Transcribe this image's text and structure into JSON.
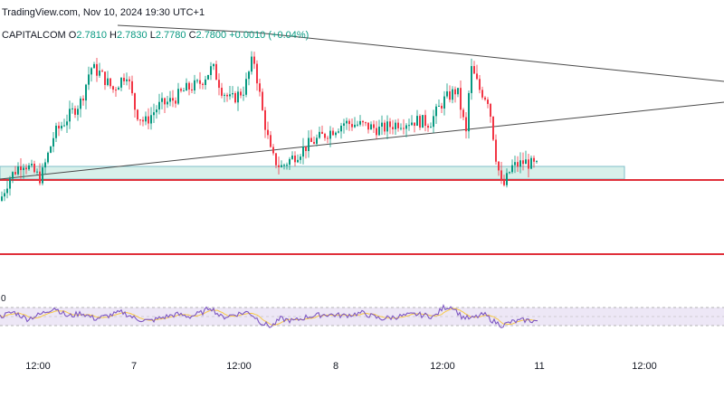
{
  "header": {
    "watermark": "TradingView.com, Nov 10, 2024 19:30 UTC+1",
    "symbol": "CAPITALCOM",
    "o_label": "O",
    "o_value": "2.7810",
    "h_label": "H",
    "h_value": "2.7830",
    "l_label": "L",
    "l_value": "2.7780",
    "c_label": "C",
    "c_value": "2.7800",
    "change": "+0.0010 (+0.04%)"
  },
  "rsi": {
    "tag": "0"
  },
  "colors": {
    "up": "#089981",
    "down": "#f23645",
    "trend": "#4a4a4a",
    "support_zone": "#d8f0ea",
    "support_border": "#7fbfc9",
    "level": "#e0303a",
    "rsi_line": "#7e57c2",
    "rsi_ma": "#f7c948",
    "rsi_band": "#ede7f6"
  },
  "chart_data": {
    "type": "candlestick",
    "x_ticks": [
      "12:00",
      "7",
      "12:00",
      "8",
      "12:00",
      "11",
      "12:00"
    ],
    "ylim": [
      2.5,
      2.84
    ],
    "support_zone": [
      2.7,
      2.715
    ],
    "horizontal_levels": [
      2.699,
      2.625
    ],
    "candles_key": "generated_ohlc",
    "price_path": [
      [
        0,
        2.7
      ],
      [
        10,
        2.72
      ],
      [
        25,
        2.735
      ],
      [
        45,
        2.72
      ],
      [
        60,
        2.76
      ],
      [
        75,
        2.775
      ],
      [
        90,
        2.79
      ],
      [
        100,
        2.82
      ],
      [
        110,
        2.815
      ],
      [
        125,
        2.8
      ],
      [
        140,
        2.815
      ],
      [
        150,
        2.78
      ],
      [
        160,
        2.77
      ],
      [
        175,
        2.785
      ],
      [
        190,
        2.79
      ],
      [
        205,
        2.8
      ],
      [
        220,
        2.805
      ],
      [
        235,
        2.82
      ],
      [
        245,
        2.8
      ],
      [
        255,
        2.79
      ],
      [
        270,
        2.8
      ],
      [
        280,
        2.83
      ],
      [
        290,
        2.78
      ],
      [
        300,
        2.74
      ],
      [
        310,
        2.73
      ],
      [
        325,
        2.74
      ],
      [
        340,
        2.75
      ],
      [
        360,
        2.76
      ],
      [
        380,
        2.77
      ],
      [
        400,
        2.768
      ],
      [
        420,
        2.764
      ],
      [
        440,
        2.77
      ],
      [
        460,
        2.772
      ],
      [
        475,
        2.77
      ],
      [
        490,
        2.79
      ],
      [
        505,
        2.8
      ],
      [
        515,
        2.76
      ],
      [
        520,
        2.82
      ],
      [
        530,
        2.8
      ],
      [
        540,
        2.79
      ],
      [
        548,
        2.74
      ],
      [
        555,
        2.71
      ],
      [
        565,
        2.73
      ],
      [
        580,
        2.735
      ],
      [
        595,
        2.73
      ]
    ],
    "trendlines": [
      {
        "from": [
          0,
          2.7
        ],
        "to": [
          800,
          2.78
        ]
      },
      {
        "from": [
          280,
          2.83
        ],
        "to": [
          800,
          2.79
        ]
      }
    ],
    "rsi": {
      "ylim": [
        0,
        100
      ],
      "band": [
        30,
        70
      ],
      "path": [
        [
          0,
          50
        ],
        [
          15,
          60
        ],
        [
          30,
          45
        ],
        [
          45,
          55
        ],
        [
          60,
          70
        ],
        [
          75,
          50
        ],
        [
          90,
          58
        ],
        [
          105,
          45
        ],
        [
          120,
          52
        ],
        [
          135,
          60
        ],
        [
          150,
          45
        ],
        [
          165,
          40
        ],
        [
          180,
          48
        ],
        [
          195,
          55
        ],
        [
          210,
          50
        ],
        [
          225,
          60
        ],
        [
          232,
          72
        ],
        [
          245,
          48
        ],
        [
          260,
          55
        ],
        [
          275,
          60
        ],
        [
          290,
          35
        ],
        [
          300,
          28
        ],
        [
          310,
          45
        ],
        [
          325,
          40
        ],
        [
          340,
          50
        ],
        [
          360,
          55
        ],
        [
          380,
          52
        ],
        [
          400,
          58
        ],
        [
          420,
          45
        ],
        [
          440,
          50
        ],
        [
          460,
          55
        ],
        [
          480,
          50
        ],
        [
          490,
          70
        ],
        [
          500,
          72
        ],
        [
          510,
          50
        ],
        [
          520,
          45
        ],
        [
          535,
          55
        ],
        [
          545,
          40
        ],
        [
          555,
          30
        ],
        [
          565,
          38
        ],
        [
          580,
          42
        ],
        [
          595,
          40
        ]
      ]
    }
  }
}
